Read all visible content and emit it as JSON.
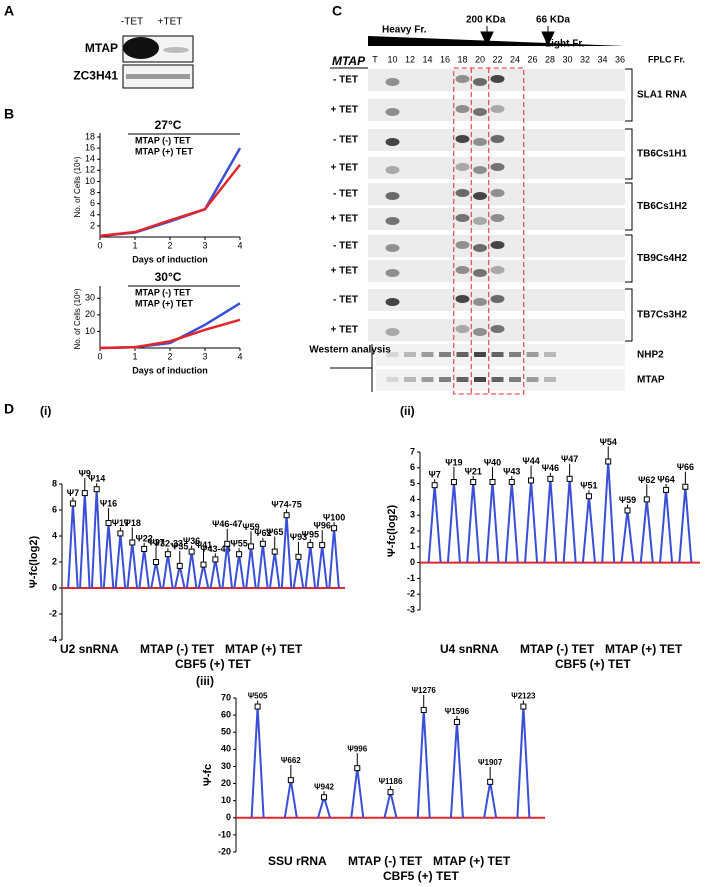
{
  "panel_a": {
    "label": "A",
    "columns": [
      "-TET",
      "+TET"
    ],
    "rows": [
      "MTAP",
      "ZC3H41"
    ]
  },
  "panel_b": {
    "label": "B",
    "charts": [
      {
        "type": "line",
        "title": "27°C",
        "xlabel": "Days of induction",
        "ylabel": "No. of Cells (10⁶)",
        "x": [
          0,
          1,
          2,
          3,
          4
        ],
        "xlim": [
          0,
          4
        ],
        "xticks": [
          0,
          1,
          2,
          3,
          4
        ],
        "ylim": [
          0,
          18
        ],
        "yticks": [
          2,
          4,
          6,
          8,
          10,
          12,
          14,
          16,
          18
        ],
        "series": [
          {
            "name": "MTAP (-) TET",
            "color": "#3a4fd6",
            "values": [
              0.2,
              0.8,
              2.8,
              5,
              16
            ]
          },
          {
            "name": "MTAP (+) TET",
            "color": "#e3262b",
            "values": [
              0.2,
              0.9,
              3,
              5,
              13
            ]
          }
        ]
      },
      {
        "type": "line",
        "title": "30°C",
        "xlabel": "Days of induction",
        "ylabel": "No. of Cells (10⁶)",
        "x": [
          0,
          1,
          2,
          3,
          4
        ],
        "xlim": [
          0,
          4
        ],
        "xticks": [
          0,
          1,
          2,
          3,
          4
        ],
        "ylim": [
          0,
          35
        ],
        "yticks": [
          10,
          20,
          30
        ],
        "series": [
          {
            "name": "MTAP (-) TET",
            "color": "#3a4fd6",
            "values": [
              0,
              0.5,
              3,
              14,
              27
            ]
          },
          {
            "name": "MTAP (+) TET",
            "color": "#e3262b",
            "values": [
              0,
              0.5,
              4,
              11,
              17
            ]
          }
        ]
      }
    ]
  },
  "panel_c": {
    "label": "C",
    "heavy": "Heavy Fr.",
    "light": "Light Fr.",
    "marker_1": "200 KDa",
    "marker_2": "66 KDa",
    "fractions_title": "FPLC Fr.",
    "gene": "MTAP",
    "fractions": [
      "T",
      "10",
      "12",
      "14",
      "16",
      "18",
      "20",
      "22",
      "24",
      "26",
      "28",
      "30",
      "32",
      "34",
      "36"
    ],
    "rows": [
      "- TET",
      "+ TET",
      "- TET",
      "+ TET",
      "- TET",
      "+ TET",
      "- TET",
      "+ TET",
      "- TET",
      "+ TET"
    ],
    "groups": [
      "SLA1 RNA",
      "TB6Cs1H1",
      "TB6Cs1H2",
      "TB9Cs4H2",
      "TB7Cs3H2"
    ],
    "western_label": "Western analysis",
    "western": [
      "NHP2",
      "MTAP"
    ]
  },
  "panel_d": {
    "label": "D",
    "charts": [
      {
        "type": "peaks",
        "tag": "(i)",
        "ylabel": "Ψ-fc(log2)",
        "ylim": [
          -4,
          8
        ],
        "yticks": [
          -4,
          -2,
          0,
          2,
          4,
          6,
          8
        ],
        "rna": "U2 snRNA",
        "series": [
          {
            "name": "MTAP (-) TET",
            "color": "#3a4fd6"
          },
          {
            "name": "MTAP (+) TET",
            "color": "#e3262b"
          },
          {
            "name": "CBF5 (+) TET",
            "color": "#2fb52f"
          }
        ],
        "peaks": [
          {
            "label": "Ψ7",
            "color": "#000000",
            "value": 6.5
          },
          {
            "label": "Ψ9",
            "color": "#000000",
            "value": 7.3
          },
          {
            "label": "Ψ14",
            "color": "#000000",
            "value": 7.6
          },
          {
            "label": "Ψ16",
            "color": "#e3262b",
            "value": 5
          },
          {
            "label": "Ψ17",
            "color": "#e3262b",
            "value": 4.2
          },
          {
            "label": "Ψ18",
            "color": "#e3262b",
            "value": 3.5
          },
          {
            "label": "Ψ22",
            "color": "#e3262b",
            "value": 3
          },
          {
            "label": "Ψ27",
            "color": "#e3262b",
            "value": 2
          },
          {
            "label": "Ψ32-33",
            "color": "#e3262b",
            "value": 2.6
          },
          {
            "label": "Ψ35",
            "color": "#e3262b",
            "value": 1.7
          },
          {
            "label": "Ψ36",
            "color": "#000000",
            "value": 2.8
          },
          {
            "label": "Ψ41",
            "color": "#e3262b",
            "value": 1.8
          },
          {
            "label": "Ψ43-44",
            "color": "#e3262b",
            "value": 2.2
          },
          {
            "label": "Ψ46-47",
            "color": "#e3262b",
            "value": 3.4
          },
          {
            "label": "Ψ55",
            "color": "#000000",
            "value": 2.6
          },
          {
            "label": "Ψ59",
            "color": "#e3262b",
            "value": 3.2
          },
          {
            "label": "Ψ62",
            "color": "#e3262b",
            "value": 3.4
          },
          {
            "label": "Ψ65",
            "color": "#000000",
            "value": 2.8
          },
          {
            "label": "Ψ74-75",
            "color": "#000000",
            "value": 5.6
          },
          {
            "label": "Ψ93",
            "color": "#000000",
            "value": 2.4
          },
          {
            "label": "Ψ95",
            "color": "#000000",
            "value": 3.3
          },
          {
            "label": "Ψ96",
            "color": "#e3262b",
            "value": 3.3
          },
          {
            "label": "Ψ100",
            "color": "#000000",
            "value": 4.6
          }
        ]
      },
      {
        "type": "peaks",
        "tag": "(ii)",
        "ylabel": "Ψ-fc(log2)",
        "ylim": [
          -3,
          7
        ],
        "yticks": [
          -3,
          -2,
          -1,
          0,
          1,
          2,
          3,
          4,
          5,
          6,
          7
        ],
        "rna": "U4 snRNA",
        "series": [
          {
            "name": "MTAP (-) TET",
            "color": "#3a4fd6"
          },
          {
            "name": "MTAP (+) TET",
            "color": "#e3262b"
          },
          {
            "name": "CBF5 (+) TET",
            "color": "#2fb52f"
          }
        ],
        "peaks": [
          {
            "label": "Ψ7",
            "color": "#e3262b",
            "value": 4.9
          },
          {
            "label": "Ψ19",
            "color": "#000000",
            "value": 5.1
          },
          {
            "label": "Ψ21",
            "color": "#000000",
            "value": 5.1
          },
          {
            "label": "Ψ40",
            "color": "#e3262b",
            "value": 5.1
          },
          {
            "label": "Ψ43",
            "color": "#000000",
            "value": 5.1
          },
          {
            "label": "Ψ44",
            "color": "#000000",
            "value": 5.2
          },
          {
            "label": "Ψ46",
            "color": "#000000",
            "value": 5.3
          },
          {
            "label": "Ψ47",
            "color": "#000000",
            "value": 5.3
          },
          {
            "label": "Ψ51",
            "color": "#000000",
            "value": 4.2
          },
          {
            "label": "Ψ54",
            "color": "#000000",
            "value": 6.4
          },
          {
            "label": "Ψ59",
            "color": "#000000",
            "value": 3.3
          },
          {
            "label": "Ψ62",
            "color": "#000000",
            "value": 4
          },
          {
            "label": "Ψ64",
            "color": "#000000",
            "value": 4.6
          },
          {
            "label": "Ψ66",
            "color": "#e3262b",
            "value": 4.8
          }
        ]
      },
      {
        "type": "peaks",
        "tag": "(iii)",
        "ylabel": "Ψ-fc",
        "ylim": [
          -20,
          70
        ],
        "yticks": [
          -20,
          -10,
          0,
          10,
          20,
          30,
          40,
          50,
          60,
          70
        ],
        "rna": "SSU rRNA",
        "series": [
          {
            "name": "MTAP (-) TET",
            "color": "#3a4fd6"
          },
          {
            "name": "MTAP (+) TET",
            "color": "#e3262b"
          },
          {
            "name": "CBF5 (+) TET",
            "color": "#2fb52f"
          }
        ],
        "peaks": [
          {
            "label": "Ψ505",
            "color": "#000000",
            "value": 65
          },
          {
            "label": "Ψ662",
            "color": "#000000",
            "value": 22
          },
          {
            "label": "Ψ942",
            "color": "#000000",
            "value": 12
          },
          {
            "label": "Ψ996",
            "color": "#000000",
            "value": 29
          },
          {
            "label": "Ψ1186",
            "color": "#000000",
            "value": 15
          },
          {
            "label": "Ψ1276",
            "color": "#000000",
            "value": 63
          },
          {
            "label": "Ψ1596",
            "color": "#000000",
            "value": 56
          },
          {
            "label": "Ψ1907",
            "color": "#000000",
            "value": 21
          },
          {
            "label": "Ψ2123",
            "color": "#000000",
            "value": 65
          }
        ]
      }
    ]
  }
}
